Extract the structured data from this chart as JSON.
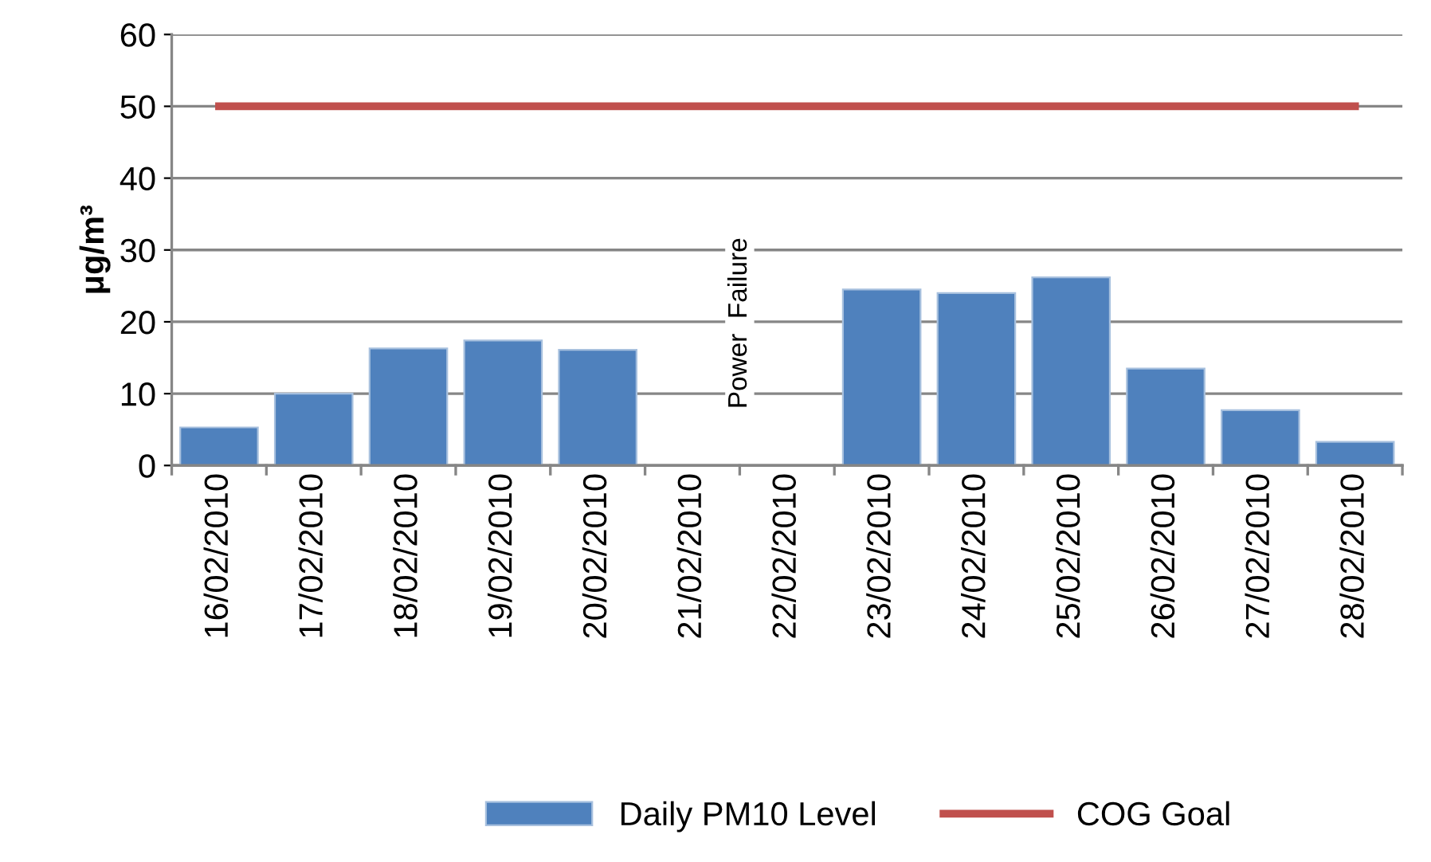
{
  "chart_data": {
    "type": "bar",
    "ylabel": "μg/m³",
    "categories": [
      "16/02/2010",
      "17/02/2010",
      "18/02/2010",
      "19/02/2010",
      "20/02/2010",
      "21/02/2010",
      "22/02/2010",
      "23/02/2010",
      "24/02/2010",
      "25/02/2010",
      "26/02/2010",
      "27/02/2010",
      "28/02/2010"
    ],
    "series": [
      {
        "name": "Daily PM10 Level",
        "color": "#4f81bd",
        "values": [
          5.3,
          10.0,
          16.3,
          17.4,
          16.1,
          null,
          null,
          24.5,
          24.0,
          26.2,
          13.5,
          7.7,
          3.3
        ]
      },
      {
        "name": "COG Goal",
        "type": "line",
        "color": "#c0504d",
        "values": [
          50,
          50,
          50,
          50,
          50,
          50,
          50,
          50,
          50,
          50,
          50,
          50,
          50
        ]
      }
    ],
    "annotations": [
      "Power  Failure"
    ],
    "ylim": [
      0,
      60
    ],
    "yticks": [
      0,
      10,
      20,
      30,
      40,
      50,
      60
    ],
    "grid": "y",
    "legend": "bottom"
  }
}
